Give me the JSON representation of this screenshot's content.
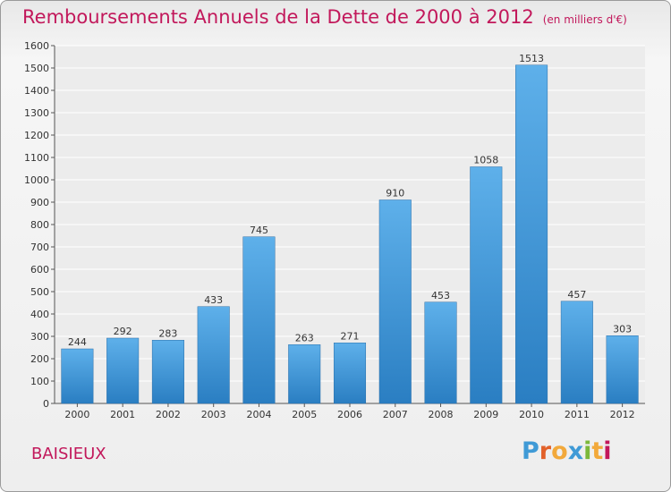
{
  "title": "Remboursements Annuels de la Dette de 2000 à 2012",
  "unit": "(en milliers d'€)",
  "city": "BAISIEUX",
  "logo": {
    "letters": [
      "P",
      "r",
      "o",
      "x",
      "i",
      "t",
      "i"
    ],
    "colors": [
      "#3f9ad6",
      "#e2612a",
      "#f2a93b",
      "#3f9ad6",
      "#7bb83a",
      "#f2a93b",
      "#c2185b"
    ]
  },
  "colors": {
    "bar_top": "#5eb0ea",
    "bar_bottom": "#2a7ec2",
    "accent": "#c2185b"
  },
  "chart_data": {
    "type": "bar",
    "categories": [
      "2000",
      "2001",
      "2002",
      "2003",
      "2004",
      "2005",
      "2006",
      "2007",
      "2008",
      "2009",
      "2010",
      "2011",
      "2012"
    ],
    "values": [
      244,
      292,
      283,
      433,
      745,
      263,
      271,
      910,
      453,
      1058,
      1513,
      457,
      303
    ],
    "ylim": [
      0,
      1600
    ],
    "yticks": [
      0,
      100,
      200,
      300,
      400,
      500,
      600,
      700,
      800,
      900,
      1000,
      1100,
      1200,
      1300,
      1400,
      1500,
      1600
    ],
    "grid": true
  }
}
